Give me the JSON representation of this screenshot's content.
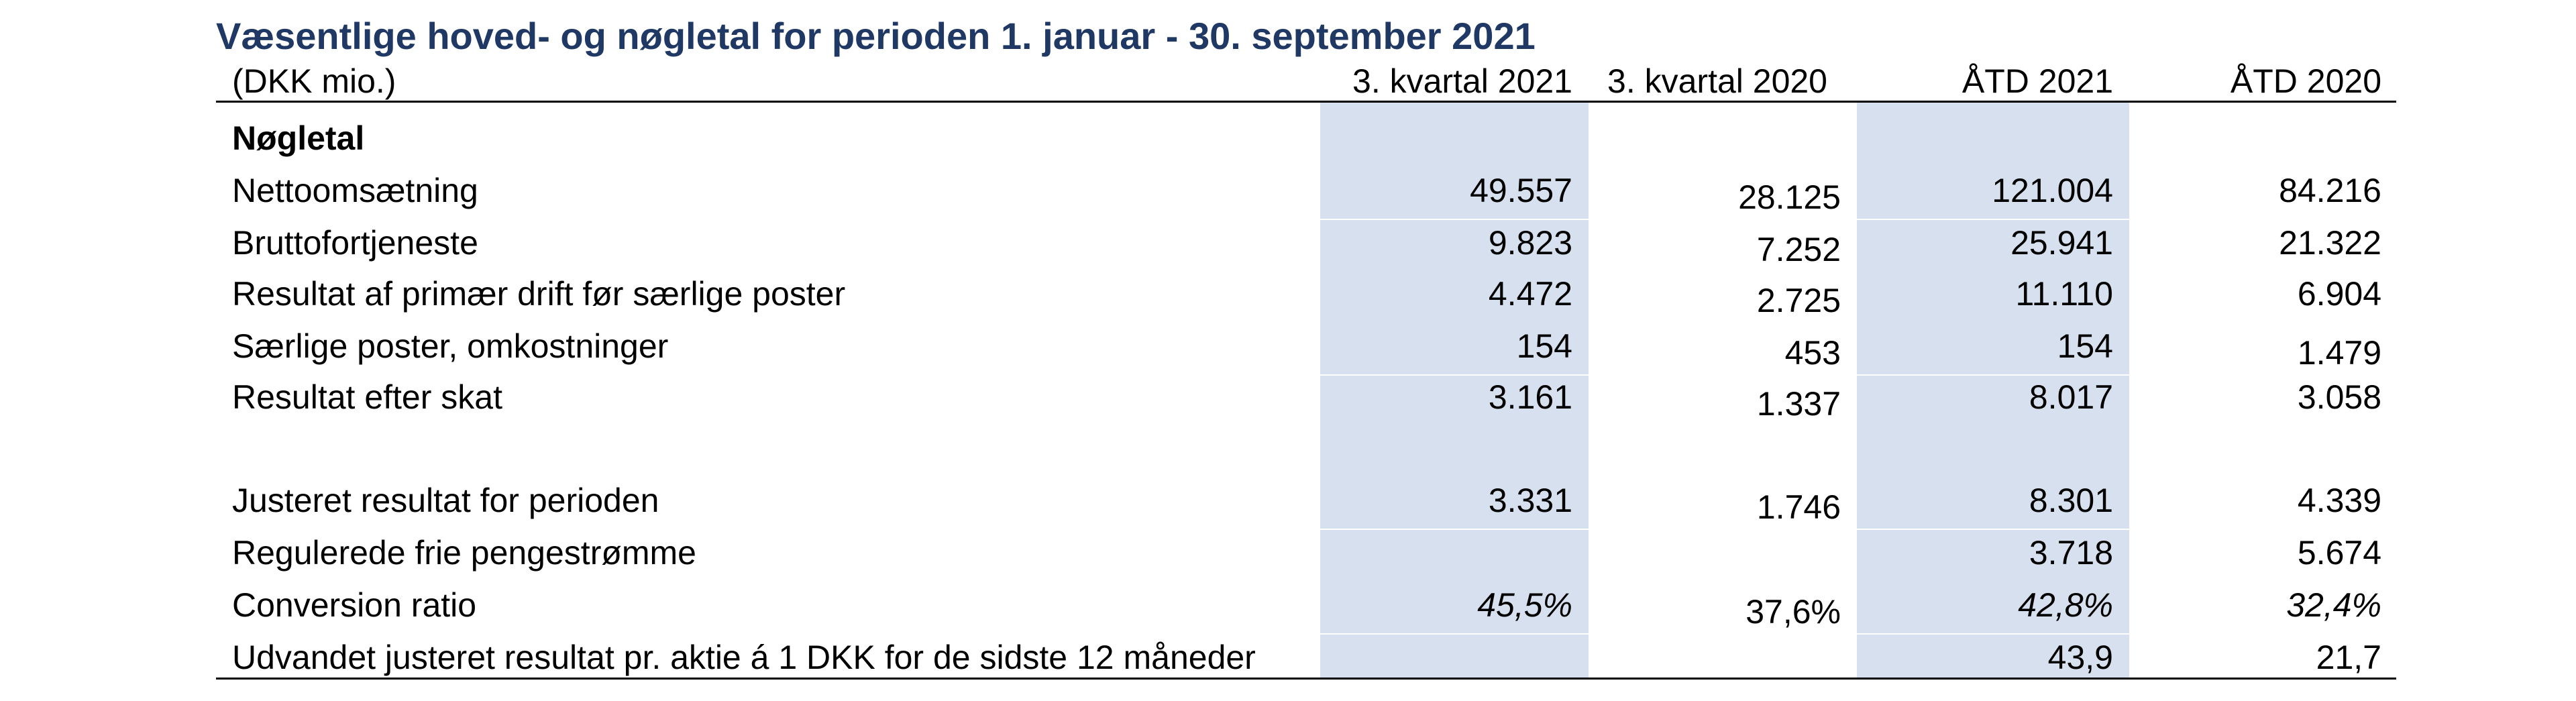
{
  "title": "Væsentlige hoved- og nøgletal for perioden 1. januar - 30. september 2021",
  "header": {
    "unit": "(DKK mio.)",
    "columns": [
      "3. kvartal 2021",
      "3. kvartal 2020",
      "ÅTD 2021",
      "ÅTD 2020"
    ]
  },
  "section": "Nøgletal",
  "rows": [
    {
      "label": "Nettoomsætning",
      "values": [
        "49.557",
        "28.125",
        "121.004",
        "84.216"
      ]
    },
    {
      "label": "Bruttofortjeneste",
      "values": [
        "9.823",
        "7.252",
        "25.941",
        "21.322"
      ]
    },
    {
      "label": "Resultat af primær drift før særlige poster",
      "values": [
        "4.472",
        "2.725",
        "11.110",
        "6.904"
      ]
    },
    {
      "label": "Særlige poster, omkostninger",
      "values": [
        "154",
        "453",
        "154",
        "1.479"
      ]
    },
    {
      "label": "Resultat efter skat",
      "values": [
        "3.161",
        "1.337",
        "8.017",
        "3.058"
      ]
    },
    {
      "label": "Justeret resultat for perioden",
      "values": [
        "3.331",
        "1.746",
        "8.301",
        "4.339"
      ]
    },
    {
      "label": "Regulerede frie pengestrømme",
      "values": [
        "",
        "",
        "3.718",
        "5.674"
      ]
    },
    {
      "label": "Conversion ratio",
      "values": [
        "45,5%",
        "37,6%",
        "42,8%",
        "32,4%"
      ]
    },
    {
      "label": "Udvandet justeret resultat pr. aktie á 1 DKK for de sidste 12 måneder",
      "values": [
        "",
        "",
        "43,9",
        "21,7"
      ]
    }
  ],
  "colors": {
    "title": "#1f3864",
    "column_shade": "#d6e0ee",
    "rule": "#000000"
  }
}
